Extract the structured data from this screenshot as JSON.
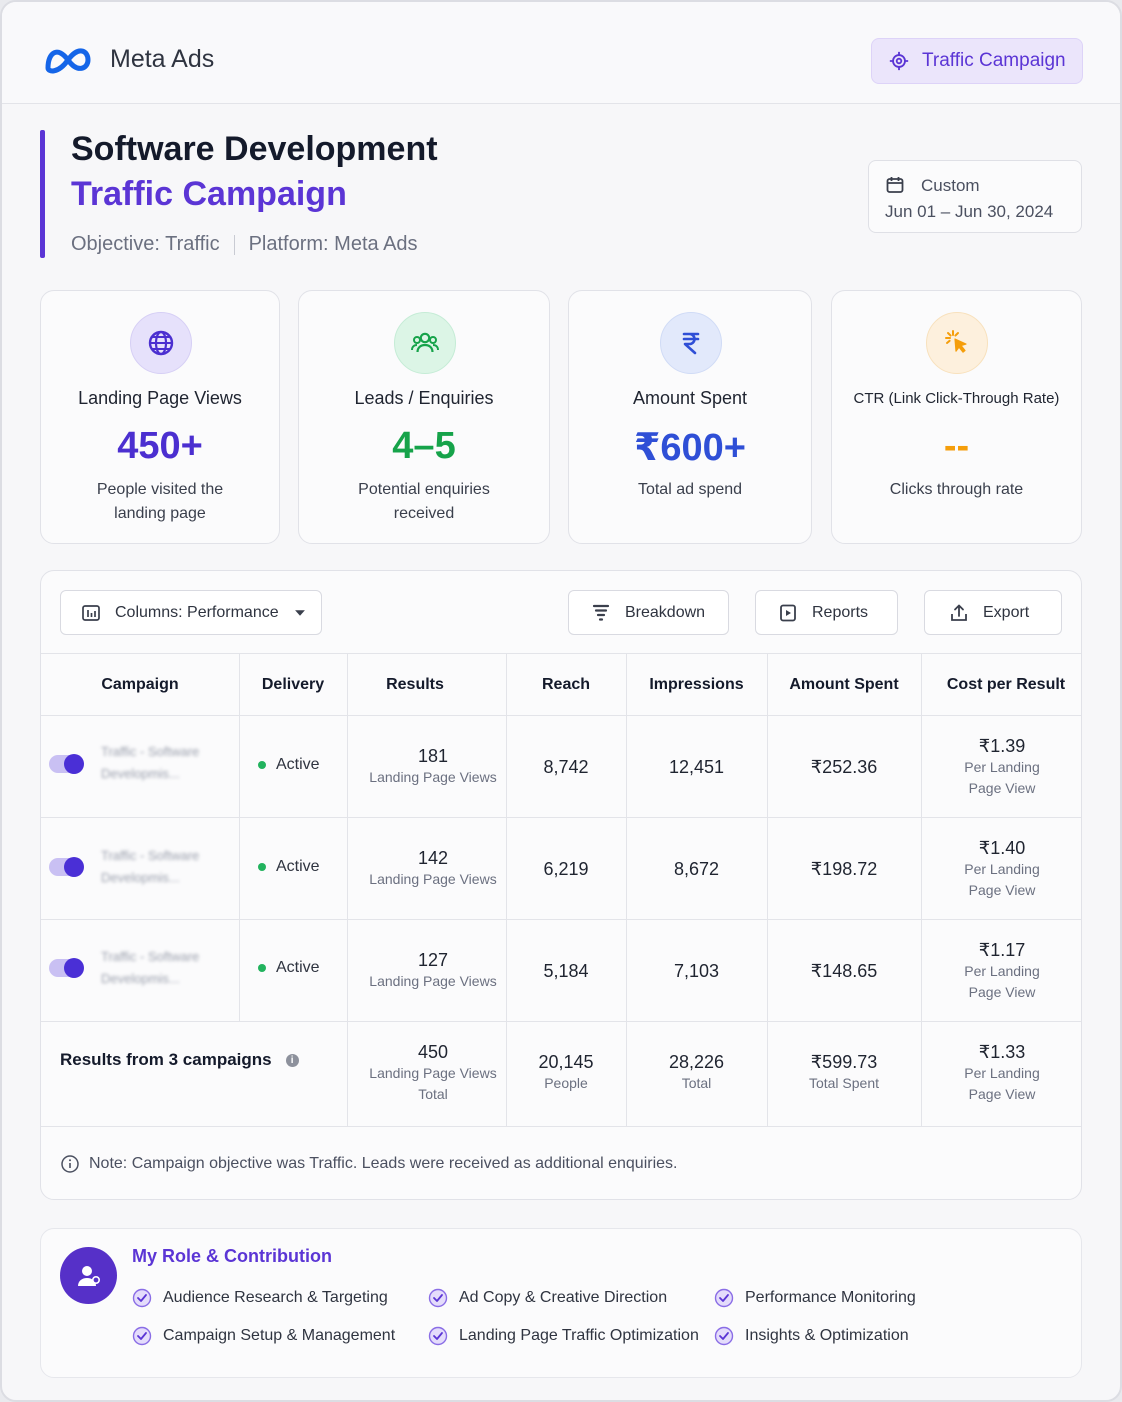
{
  "header": {
    "brand": "Meta Ads",
    "badge": "Traffic Campaign"
  },
  "title": {
    "line1": "Software Development",
    "line2": "Traffic Campaign",
    "objective": "Objective: Traffic",
    "platform": "Platform: Meta Ads"
  },
  "date_range": {
    "label": "Custom",
    "value": "Jun 01 – Jun 30, 2024"
  },
  "stats": [
    {
      "label": "Landing Page Views",
      "value": "450+",
      "sub": "People visited the landing page",
      "icon": "globe-icon",
      "color": "#4b2fd0"
    },
    {
      "label": "Leads / Enquiries",
      "value": "4–5",
      "sub": "Potential enquiries received",
      "icon": "users-icon",
      "color": "#16a34a"
    },
    {
      "label": "Amount Spent",
      "value": "₹600+",
      "sub": "Total ad spend",
      "icon": "rupee-icon",
      "color": "#2f4fd6"
    },
    {
      "label": "CTR (Link Click-Through Rate)",
      "value": "--",
      "sub": "Clicks through rate",
      "icon": "cursor-click-icon",
      "color": "#f59e0b"
    }
  ],
  "toolbar": {
    "columns": "Columns: Performance",
    "breakdown": "Breakdown",
    "reports": "Reports",
    "export": "Export"
  },
  "table": {
    "headers": [
      "Campaign",
      "Delivery",
      "Results",
      "Reach",
      "Impressions",
      "Amount Spent",
      "Cost per Result"
    ],
    "rows": [
      {
        "campaign_l1": "Traffic - Software",
        "campaign_l2": "Developmis...",
        "delivery": "Active",
        "results": "181",
        "results_sub": "Landing Page Views",
        "reach": "8,742",
        "impressions": "12,451",
        "spent": "₹252.36",
        "cpr": "₹1.39",
        "cpr_sub1": "Per Landing",
        "cpr_sub2": "Page View"
      },
      {
        "campaign_l1": "Traffic - Software",
        "campaign_l2": "Developmis...",
        "delivery": "Active",
        "results": "142",
        "results_sub": "Landing Page Views",
        "reach": "6,219",
        "impressions": "8,672",
        "spent": "₹198.72",
        "cpr": "₹1.40",
        "cpr_sub1": "Per Landing",
        "cpr_sub2": "Page View"
      },
      {
        "campaign_l1": "Traffic - Software",
        "campaign_l2": "Developmis...",
        "delivery": "Active",
        "results": "127",
        "results_sub": "Landing Page Views",
        "reach": "5,184",
        "impressions": "7,103",
        "spent": "₹148.65",
        "cpr": "₹1.17",
        "cpr_sub1": "Per Landing",
        "cpr_sub2": "Page View"
      }
    ],
    "total": {
      "label": "Results from 3 campaigns",
      "results": "450",
      "results_sub1": "Landing Page Views",
      "results_sub2": "Total",
      "reach": "20,145",
      "reach_sub": "People",
      "impressions": "28,226",
      "impressions_sub": "Total",
      "spent": "₹599.73",
      "spent_sub": "Total Spent",
      "cpr": "₹1.33",
      "cpr_sub1": "Per Landing",
      "cpr_sub2": "Page View"
    },
    "note": "Note: Campaign objective was Traffic. Leads were received as additional enquiries."
  },
  "role": {
    "title": "My Role & Contribution",
    "items": [
      "Audience Research & Targeting",
      "Ad Copy & Creative Direction",
      "Performance Monitoring",
      "Campaign Setup & Management",
      "Landing Page Traffic Optimization",
      "Insights & Optimization"
    ]
  }
}
